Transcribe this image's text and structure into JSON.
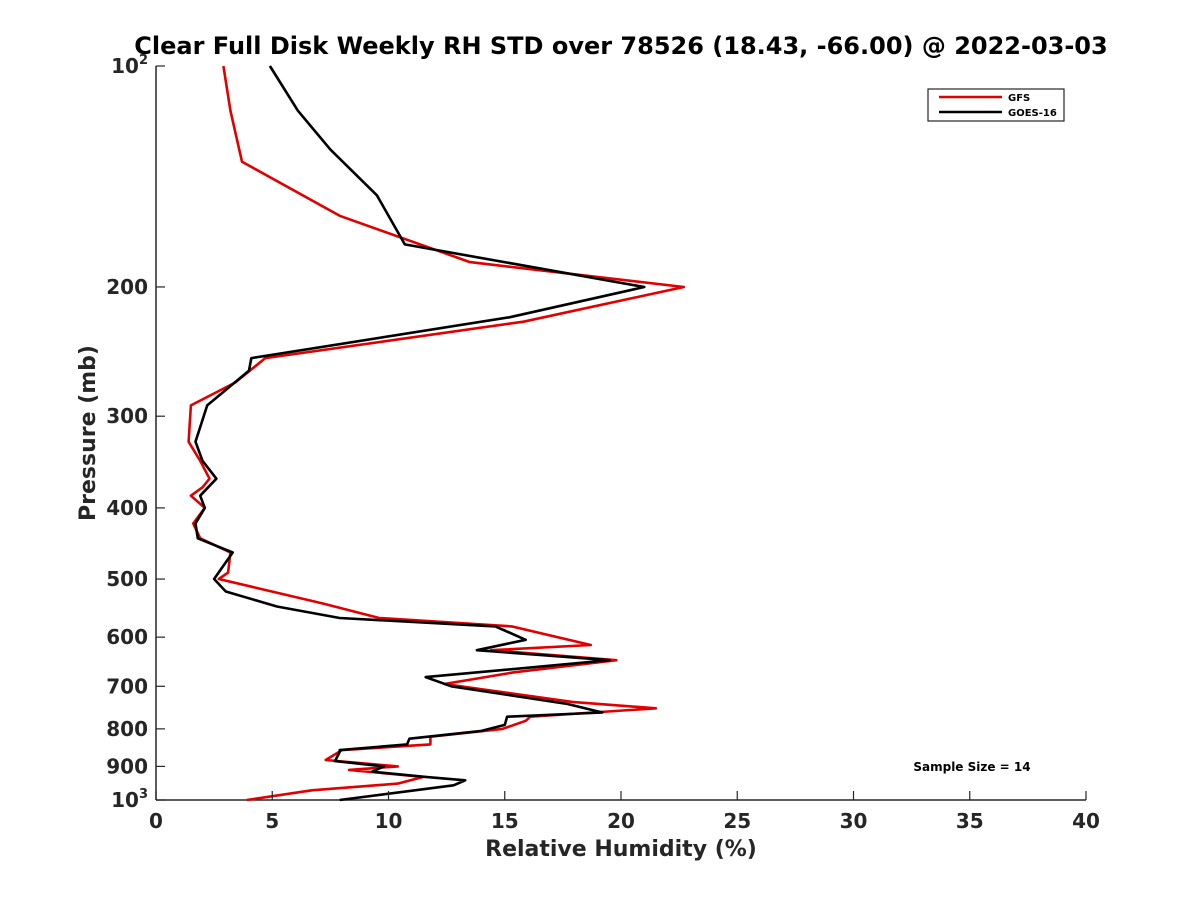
{
  "chart_data": {
    "type": "line",
    "title": "Clear Full Disk Weekly RH STD over 78526 (18.43, -66.00) @ 2022-03-03",
    "xlabel": "Relative Humidity (%)",
    "ylabel": "Pressure (mb)",
    "xlim": [
      0,
      40
    ],
    "ylim": [
      100,
      1000
    ],
    "y_scale": "log",
    "y_reversed": true,
    "x_ticks": [
      "0",
      "5",
      "10",
      "15",
      "20",
      "25",
      "30",
      "35",
      "40"
    ],
    "y_ticks": [
      {
        "value": 100,
        "base": "10",
        "sup": "2"
      },
      {
        "value": 200,
        "label": "200"
      },
      {
        "value": 300,
        "label": "300"
      },
      {
        "value": 400,
        "label": "400"
      },
      {
        "value": 500,
        "label": "500"
      },
      {
        "value": 600,
        "label": "600"
      },
      {
        "value": 700,
        "label": "700"
      },
      {
        "value": 800,
        "label": "800"
      },
      {
        "value": 900,
        "label": "900"
      },
      {
        "value": 1000,
        "base": "10",
        "sup": "3"
      }
    ],
    "legend_position": "top-right",
    "series": [
      {
        "name": "GFS",
        "color": "#e00000",
        "points": [
          [
            2.9,
            100
          ],
          [
            3.2,
            115
          ],
          [
            3.7,
            135
          ],
          [
            7.9,
            160
          ],
          [
            13.5,
            185
          ],
          [
            22.7,
            200
          ],
          [
            15.8,
            223
          ],
          [
            4.7,
            250
          ],
          [
            3.4,
            270
          ],
          [
            1.5,
            290
          ],
          [
            1.4,
            325
          ],
          [
            1.9,
            345
          ],
          [
            2.3,
            365
          ],
          [
            2.0,
            375
          ],
          [
            1.5,
            385
          ],
          [
            2.1,
            400
          ],
          [
            1.6,
            420
          ],
          [
            1.9,
            440
          ],
          [
            3.2,
            460
          ],
          [
            3.1,
            490
          ],
          [
            2.7,
            500
          ],
          [
            7.2,
            540
          ],
          [
            9.6,
            565
          ],
          [
            15.3,
            580
          ],
          [
            18.7,
            615
          ],
          [
            14.4,
            625
          ],
          [
            19.8,
            645
          ],
          [
            15.4,
            670
          ],
          [
            12.4,
            695
          ],
          [
            17.9,
            735
          ],
          [
            21.5,
            750
          ],
          [
            16.1,
            770
          ],
          [
            15.9,
            780
          ],
          [
            14.9,
            800
          ],
          [
            11.8,
            820
          ],
          [
            11.8,
            840
          ],
          [
            8.0,
            855
          ],
          [
            7.3,
            882
          ],
          [
            10.4,
            900
          ],
          [
            8.3,
            910
          ],
          [
            11.5,
            930
          ],
          [
            10.4,
            950
          ],
          [
            6.7,
            970
          ],
          [
            3.9,
            1000
          ]
        ]
      },
      {
        "name": "GOES-16",
        "color": "#000000",
        "points": [
          [
            4.9,
            100
          ],
          [
            6.1,
            115
          ],
          [
            7.5,
            130
          ],
          [
            9.5,
            150
          ],
          [
            10.7,
            175
          ],
          [
            21.0,
            200
          ],
          [
            15.2,
            220
          ],
          [
            4.1,
            250
          ],
          [
            4.0,
            260
          ],
          [
            2.2,
            290
          ],
          [
            1.7,
            325
          ],
          [
            2.0,
            345
          ],
          [
            2.6,
            365
          ],
          [
            1.9,
            385
          ],
          [
            2.1,
            400
          ],
          [
            1.7,
            420
          ],
          [
            1.8,
            440
          ],
          [
            3.3,
            460
          ],
          [
            2.5,
            500
          ],
          [
            3.0,
            520
          ],
          [
            5.2,
            545
          ],
          [
            7.9,
            565
          ],
          [
            14.6,
            580
          ],
          [
            15.9,
            605
          ],
          [
            13.8,
            625
          ],
          [
            19.5,
            645
          ],
          [
            11.6,
            680
          ],
          [
            12.7,
            700
          ],
          [
            17.7,
            740
          ],
          [
            19.2,
            760
          ],
          [
            15.1,
            770
          ],
          [
            15.0,
            790
          ],
          [
            14.0,
            805
          ],
          [
            10.9,
            825
          ],
          [
            10.8,
            840
          ],
          [
            7.9,
            855
          ],
          [
            7.9,
            860
          ],
          [
            7.7,
            885
          ],
          [
            9.8,
            900
          ],
          [
            9.3,
            915
          ],
          [
            11.6,
            930
          ],
          [
            13.3,
            940
          ],
          [
            12.8,
            955
          ],
          [
            7.9,
            1000
          ]
        ]
      }
    ],
    "annotations": [
      "Sample Size = 14"
    ]
  }
}
